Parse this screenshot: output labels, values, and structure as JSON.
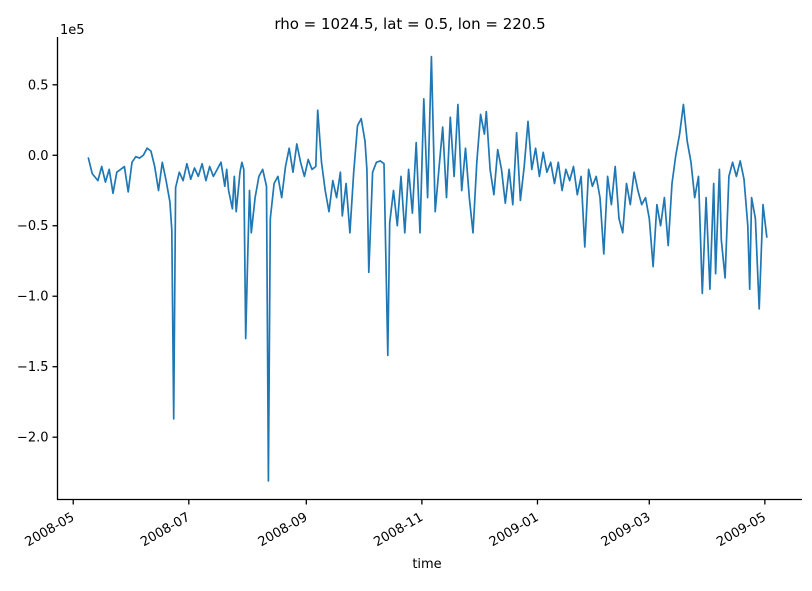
{
  "chart_data": {
    "type": "line",
    "title": "rho = 1024.5, lat = 0.5, lon = 220.5",
    "xlabel": "time",
    "ylabel": "",
    "y_offset_label": "1e5",
    "line_color": "#1f77b4",
    "background_color": "#ffffff",
    "grid": false,
    "legend": null,
    "x_axis": {
      "type": "time",
      "epoch": "2008-05-01",
      "tick_labels": [
        "2008-05",
        "2008-07",
        "2008-09",
        "2008-11",
        "2009-01",
        "2009-03",
        "2009-05"
      ],
      "tick_days": [
        0,
        61,
        123,
        184,
        245,
        304,
        365
      ],
      "domain_days": [
        -8.3,
        384.6
      ],
      "label_rotation_deg": -30
    },
    "y_axis": {
      "tick_labels": [
        "0.5",
        "0.0",
        "−0.5",
        "−1.0",
        "−1.5",
        "−2.0"
      ],
      "tick_values": [
        0.5,
        0.0,
        -0.5,
        -1.0,
        -1.5,
        -2.0
      ],
      "scale_factor": 100000,
      "domain": [
        -2.442,
        0.839
      ]
    },
    "series": [
      {
        "name": "rho = 1024.5, lat = 0.5, lon = 220.5",
        "x_unit": "days since 2008-05-01",
        "y_unit": "1e5",
        "points_day_value": [
          [
            8,
            -0.02
          ],
          [
            10,
            -0.13
          ],
          [
            13,
            -0.18
          ],
          [
            15,
            -0.08
          ],
          [
            17,
            -0.19
          ],
          [
            19,
            -0.1
          ],
          [
            21,
            -0.27
          ],
          [
            23,
            -0.12
          ],
          [
            25,
            -0.1
          ],
          [
            27,
            -0.08
          ],
          [
            29,
            -0.26
          ],
          [
            31,
            -0.05
          ],
          [
            33,
            -0.01
          ],
          [
            35,
            -0.02
          ],
          [
            37,
            0
          ],
          [
            39,
            0.05
          ],
          [
            41,
            0.03
          ],
          [
            43,
            -0.08
          ],
          [
            45,
            -0.25
          ],
          [
            47,
            -0.05
          ],
          [
            49,
            -0.18
          ],
          [
            51,
            -0.33
          ],
          [
            52,
            -0.53
          ],
          [
            53,
            -1.87
          ],
          [
            54,
            -0.23
          ],
          [
            56,
            -0.12
          ],
          [
            58,
            -0.18
          ],
          [
            60,
            -0.06
          ],
          [
            62,
            -0.17
          ],
          [
            64,
            -0.09
          ],
          [
            66,
            -0.15
          ],
          [
            68,
            -0.06
          ],
          [
            70,
            -0.18
          ],
          [
            72,
            -0.08
          ],
          [
            74,
            -0.15
          ],
          [
            76,
            -0.1
          ],
          [
            78,
            -0.05
          ],
          [
            80,
            -0.22
          ],
          [
            81,
            -0.1
          ],
          [
            82,
            -0.25
          ],
          [
            84,
            -0.38
          ],
          [
            85,
            -0.15
          ],
          [
            86,
            -0.4
          ],
          [
            88,
            -0.12
          ],
          [
            89,
            -0.05
          ],
          [
            90,
            -0.1
          ],
          [
            91,
            -1.3
          ],
          [
            92,
            -0.75
          ],
          [
            93,
            -0.25
          ],
          [
            94,
            -0.55
          ],
          [
            96,
            -0.3
          ],
          [
            98,
            -0.15
          ],
          [
            100,
            -0.1
          ],
          [
            102,
            -0.22
          ],
          [
            103,
            -2.31
          ],
          [
            104,
            -0.45
          ],
          [
            106,
            -0.2
          ],
          [
            108,
            -0.15
          ],
          [
            110,
            -0.3
          ],
          [
            112,
            -0.08
          ],
          [
            114,
            0.05
          ],
          [
            116,
            -0.12
          ],
          [
            118,
            0.08
          ],
          [
            120,
            -0.05
          ],
          [
            122,
            -0.15
          ],
          [
            124,
            -0.03
          ],
          [
            126,
            -0.1
          ],
          [
            128,
            -0.08
          ],
          [
            129,
            0.32
          ],
          [
            131,
            -0.05
          ],
          [
            133,
            -0.25
          ],
          [
            135,
            -0.4
          ],
          [
            137,
            -0.18
          ],
          [
            139,
            -0.3
          ],
          [
            141,
            -0.12
          ],
          [
            142,
            -0.43
          ],
          [
            144,
            -0.2
          ],
          [
            146,
            -0.55
          ],
          [
            148,
            -0.12
          ],
          [
            150,
            0.21
          ],
          [
            152,
            0.26
          ],
          [
            154,
            0.1
          ],
          [
            155,
            -0.1
          ],
          [
            156,
            -0.83
          ],
          [
            158,
            -0.12
          ],
          [
            160,
            -0.05
          ],
          [
            162,
            -0.04
          ],
          [
            164,
            -0.06
          ],
          [
            166,
            -1.42
          ],
          [
            167,
            -0.48
          ],
          [
            169,
            -0.25
          ],
          [
            171,
            -0.5
          ],
          [
            173,
            -0.15
          ],
          [
            175,
            -0.55
          ],
          [
            177,
            -0.1
          ],
          [
            179,
            -0.41
          ],
          [
            181,
            0.09
          ],
          [
            183,
            -0.55
          ],
          [
            185,
            0.4
          ],
          [
            187,
            -0.3
          ],
          [
            189,
            0.7
          ],
          [
            191,
            -0.4
          ],
          [
            193,
            -0.1
          ],
          [
            195,
            0.2
          ],
          [
            197,
            -0.3
          ],
          [
            199,
            0.27
          ],
          [
            201,
            -0.15
          ],
          [
            203,
            0.36
          ],
          [
            205,
            -0.25
          ],
          [
            207,
            0.05
          ],
          [
            209,
            -0.3
          ],
          [
            211,
            -0.55
          ],
          [
            213,
            -0.05
          ],
          [
            215,
            0.29
          ],
          [
            217,
            0.15
          ],
          [
            218,
            0.31
          ],
          [
            220,
            -0.1
          ],
          [
            222,
            -0.28
          ],
          [
            224,
            0.04
          ],
          [
            226,
            -0.1
          ],
          [
            228,
            -0.34
          ],
          [
            230,
            -0.1
          ],
          [
            232,
            -0.35
          ],
          [
            234,
            0.16
          ],
          [
            236,
            -0.32
          ],
          [
            238,
            -0.08
          ],
          [
            240,
            0.24
          ],
          [
            242,
            -0.1
          ],
          [
            244,
            0.05
          ],
          [
            246,
            -0.15
          ],
          [
            248,
            0.02
          ],
          [
            250,
            -0.12
          ],
          [
            252,
            -0.05
          ],
          [
            254,
            -0.2
          ],
          [
            256,
            -0.05
          ],
          [
            258,
            -0.25
          ],
          [
            260,
            -0.1
          ],
          [
            262,
            -0.18
          ],
          [
            264,
            -0.08
          ],
          [
            266,
            -0.28
          ],
          [
            268,
            -0.15
          ],
          [
            270,
            -0.65
          ],
          [
            272,
            -0.1
          ],
          [
            274,
            -0.22
          ],
          [
            276,
            -0.15
          ],
          [
            278,
            -0.3
          ],
          [
            280,
            -0.7
          ],
          [
            282,
            -0.15
          ],
          [
            284,
            -0.35
          ],
          [
            286,
            -0.08
          ],
          [
            288,
            -0.45
          ],
          [
            290,
            -0.55
          ],
          [
            292,
            -0.2
          ],
          [
            294,
            -0.35
          ],
          [
            296,
            -0.12
          ],
          [
            298,
            -0.25
          ],
          [
            300,
            -0.35
          ],
          [
            302,
            -0.3
          ],
          [
            304,
            -0.45
          ],
          [
            306,
            -0.79
          ],
          [
            308,
            -0.35
          ],
          [
            310,
            -0.5
          ],
          [
            312,
            -0.3
          ],
          [
            314,
            -0.64
          ],
          [
            316,
            -0.2
          ],
          [
            318,
            0
          ],
          [
            320,
            0.15
          ],
          [
            322,
            0.36
          ],
          [
            324,
            0.1
          ],
          [
            326,
            -0.05
          ],
          [
            328,
            -0.3
          ],
          [
            330,
            -0.15
          ],
          [
            332,
            -0.98
          ],
          [
            334,
            -0.3
          ],
          [
            336,
            -0.95
          ],
          [
            338,
            -0.2
          ],
          [
            339,
            -0.84
          ],
          [
            341,
            -0.1
          ],
          [
            342,
            -0.6
          ],
          [
            344,
            -0.87
          ],
          [
            346,
            -0.15
          ],
          [
            348,
            -0.05
          ],
          [
            350,
            -0.15
          ],
          [
            352,
            -0.04
          ],
          [
            354,
            -0.17
          ],
          [
            356,
            -0.5
          ],
          [
            357,
            -0.95
          ],
          [
            358,
            -0.3
          ],
          [
            360,
            -0.45
          ],
          [
            362,
            -1.09
          ],
          [
            364,
            -0.35
          ],
          [
            366,
            -0.58
          ]
        ]
      }
    ]
  }
}
